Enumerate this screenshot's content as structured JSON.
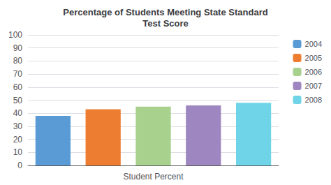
{
  "chart_data": {
    "type": "bar",
    "title": "Percentage of Students Meeting State Standard\nTest Score",
    "xlabel": "Student Percent",
    "categories": [
      "2004",
      "2005",
      "2006",
      "2007",
      "2008"
    ],
    "values": [
      38,
      43,
      45,
      46,
      48
    ],
    "colors": [
      "#5B9BD5",
      "#ED7D31",
      "#A9D18E",
      "#9E86C0",
      "#70D4E8"
    ],
    "ylim": [
      0,
      100
    ],
    "yticks": [
      0,
      10,
      20,
      30,
      40,
      50,
      60,
      70,
      80,
      90,
      100
    ],
    "grid": true,
    "legend": "upper right",
    "tick_labels": "y"
  }
}
